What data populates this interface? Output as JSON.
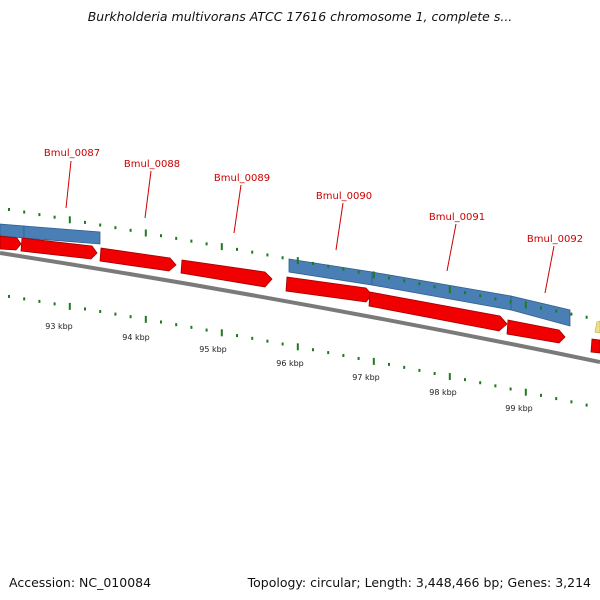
{
  "header": {
    "title": "Burkholderia multivorans ATCC 17616 chromosome 1, complete s..."
  },
  "footer": {
    "accession": "Accession: NC_010084",
    "stats": "Topology: circular; Length: 3,448,466 bp; Genes: 3,214"
  },
  "colors": {
    "backbone": "#7a7a7a",
    "forward_gene": "#f00000",
    "reverse_gene": "#4a7fb5",
    "other_feature": "#f0e08a",
    "tick": "#1f7a1f",
    "label": "#cc0000"
  },
  "genes": [
    {
      "label": "Bmul_0087"
    },
    {
      "label": "Bmul_0088"
    },
    {
      "label": "Bmul_0089"
    },
    {
      "label": "Bmul_0090"
    },
    {
      "label": "Bmul_0091"
    },
    {
      "label": "Bmul_0092"
    }
  ],
  "scale_labels": [
    "93 kbp",
    "94 kbp",
    "95 kbp",
    "96 kbp",
    "97 kbp",
    "98 kbp",
    "99 kbp"
  ]
}
